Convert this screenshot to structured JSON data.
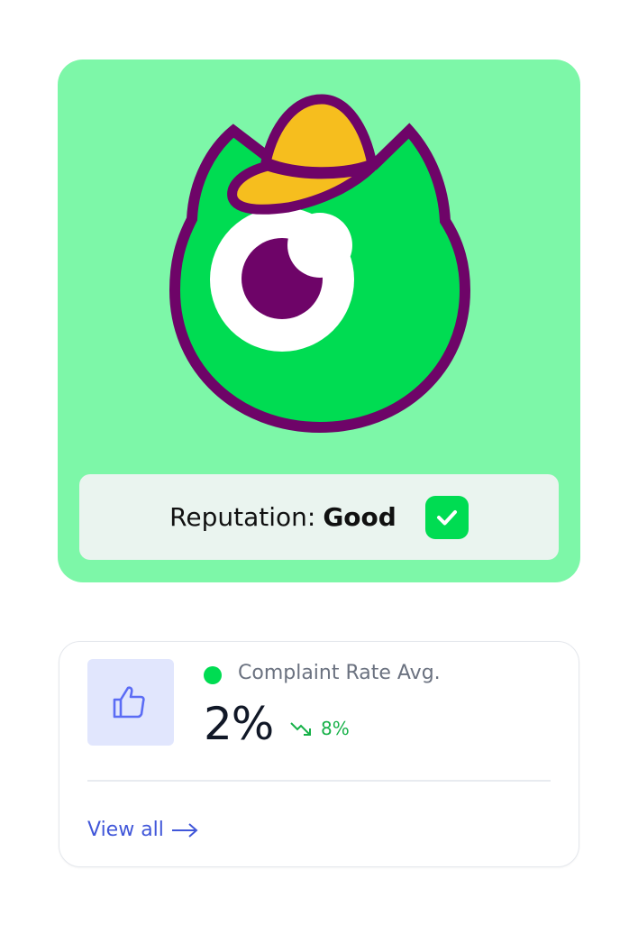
{
  "reputation": {
    "label": "Reputation:",
    "value": "Good",
    "status_icon": "check-icon"
  },
  "mascot": {
    "name": "green-monster-with-cap"
  },
  "metric": {
    "icon": "thumbs-up-icon",
    "status_color": "#00DC52",
    "label": "Complaint Rate Avg.",
    "value": "2%",
    "trend": {
      "direction": "down",
      "icon": "trend-down-icon",
      "value": "8%",
      "color": "#16B148"
    },
    "link": {
      "label": "View all",
      "icon": "arrow-right-icon"
    }
  },
  "colors": {
    "hero_bg": "#7DF7A8",
    "accent": "#00DC52",
    "link": "#4157D9",
    "outline": "#6E0468",
    "hat": "#F6BE1E"
  }
}
